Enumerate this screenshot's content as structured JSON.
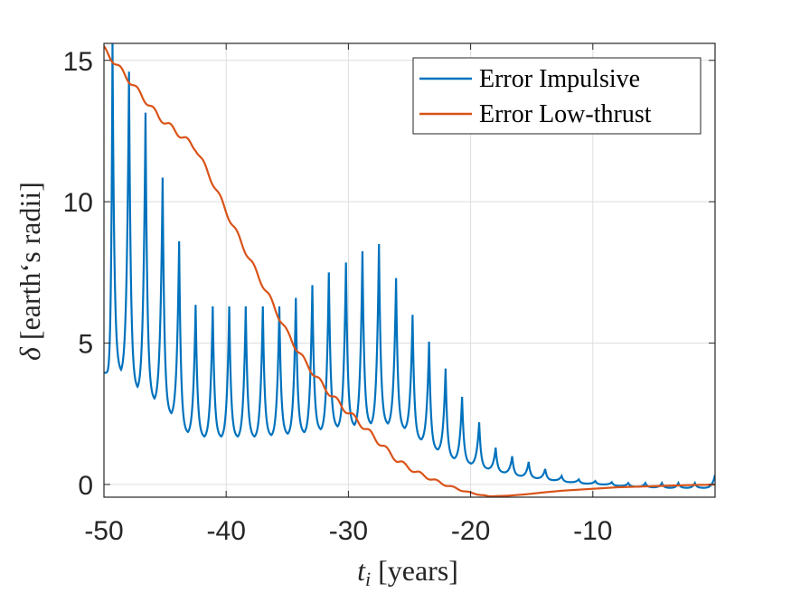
{
  "chart_data": {
    "type": "line",
    "title": "",
    "xlabel_symbol": "t",
    "xlabel_subscript": "i",
    "xlabel_text": " [years]",
    "ylabel_symbol": "δ",
    "ylabel_text": " [earth‘s radii]",
    "xlim": [
      -50,
      0
    ],
    "ylim": [
      -0.45,
      15.6
    ],
    "xticks": [
      -50,
      -40,
      -30,
      -20,
      -10
    ],
    "xtick_labels": [
      "-50",
      "-40",
      "-30",
      "-20",
      "-10"
    ],
    "yticks": [
      0,
      5,
      10,
      15
    ],
    "ytick_labels": [
      "0",
      "5",
      "10",
      "15"
    ],
    "grid": true,
    "legend_position": "top-right",
    "series": [
      {
        "name": "Error Impulsive",
        "color": "#0072BD",
        "kind": "spikes",
        "period_years": 1.36,
        "spike_times": [
          -49.3,
          -47.95,
          -46.6,
          -45.2,
          -43.85,
          -42.5,
          -41.1,
          -39.75,
          -38.4,
          -37.0,
          -35.65,
          -34.3,
          -32.95,
          -31.6,
          -30.2,
          -28.85,
          -27.5,
          -26.1,
          -24.75,
          -23.4,
          -22.05,
          -20.7,
          -19.3,
          -17.95,
          -16.6,
          -15.25,
          -13.9,
          -12.55,
          -11.15,
          -9.8,
          -8.45,
          -7.1,
          -5.7,
          -4.35,
          -3.0,
          -1.65
        ],
        "spike_peaks": [
          15.6,
          14.6,
          13.15,
          10.85,
          8.6,
          6.35,
          6.3,
          6.3,
          6.3,
          6.3,
          6.3,
          6.6,
          7.05,
          7.5,
          7.85,
          8.25,
          8.5,
          7.3,
          6.0,
          5.05,
          4.1,
          3.1,
          2.2,
          1.3,
          1.0,
          0.8,
          0.55,
          0.3,
          0.18,
          0.12,
          0.08,
          0.05,
          0.05,
          0.05,
          0.05,
          0.05
        ],
        "valley_mins": [
          3.95,
          3.35,
          2.95,
          2.45,
          1.8,
          1.65,
          1.65,
          1.65,
          1.65,
          1.7,
          1.75,
          1.8,
          1.9,
          2.0,
          2.05,
          2.1,
          2.1,
          1.95,
          1.55,
          1.2,
          0.9,
          0.72,
          0.55,
          0.42,
          0.3,
          0.22,
          0.15,
          0.08,
          0.03,
          0.0,
          -0.05,
          -0.08,
          -0.1,
          -0.12,
          -0.12,
          -0.12
        ],
        "start_value": 3.95,
        "end_value": 0.0
      },
      {
        "name": "Error Low-thrust",
        "color": "#D95319",
        "kind": "wavy",
        "x": [
          -50,
          -48.5,
          -47,
          -45.5,
          -44,
          -42.5,
          -41,
          -39.5,
          -38,
          -36.5,
          -35,
          -33.5,
          -32,
          -30.5,
          -29,
          -27.5,
          -26,
          -24.5,
          -23,
          -21.5,
          -20,
          -18.5,
          -17,
          -15.5,
          -14,
          -12.5,
          -11,
          -9.5,
          -8,
          -6.5,
          -5,
          -3.5,
          -2,
          -0.5,
          0
        ],
        "values": [
          15.4,
          14.6,
          13.8,
          13.0,
          12.45,
          11.9,
          10.6,
          9.2,
          7.9,
          6.65,
          5.35,
          4.3,
          3.45,
          2.75,
          2.15,
          1.5,
          0.85,
          0.45,
          0.15,
          -0.1,
          -0.3,
          -0.42,
          -0.4,
          -0.35,
          -0.28,
          -0.22,
          -0.18,
          -0.14,
          -0.1,
          -0.08,
          -0.06,
          -0.04,
          -0.02,
          -0.01,
          0.0
        ],
        "wiggle_amplitude": 0.1,
        "wiggle_period_years": 1.36
      }
    ]
  }
}
